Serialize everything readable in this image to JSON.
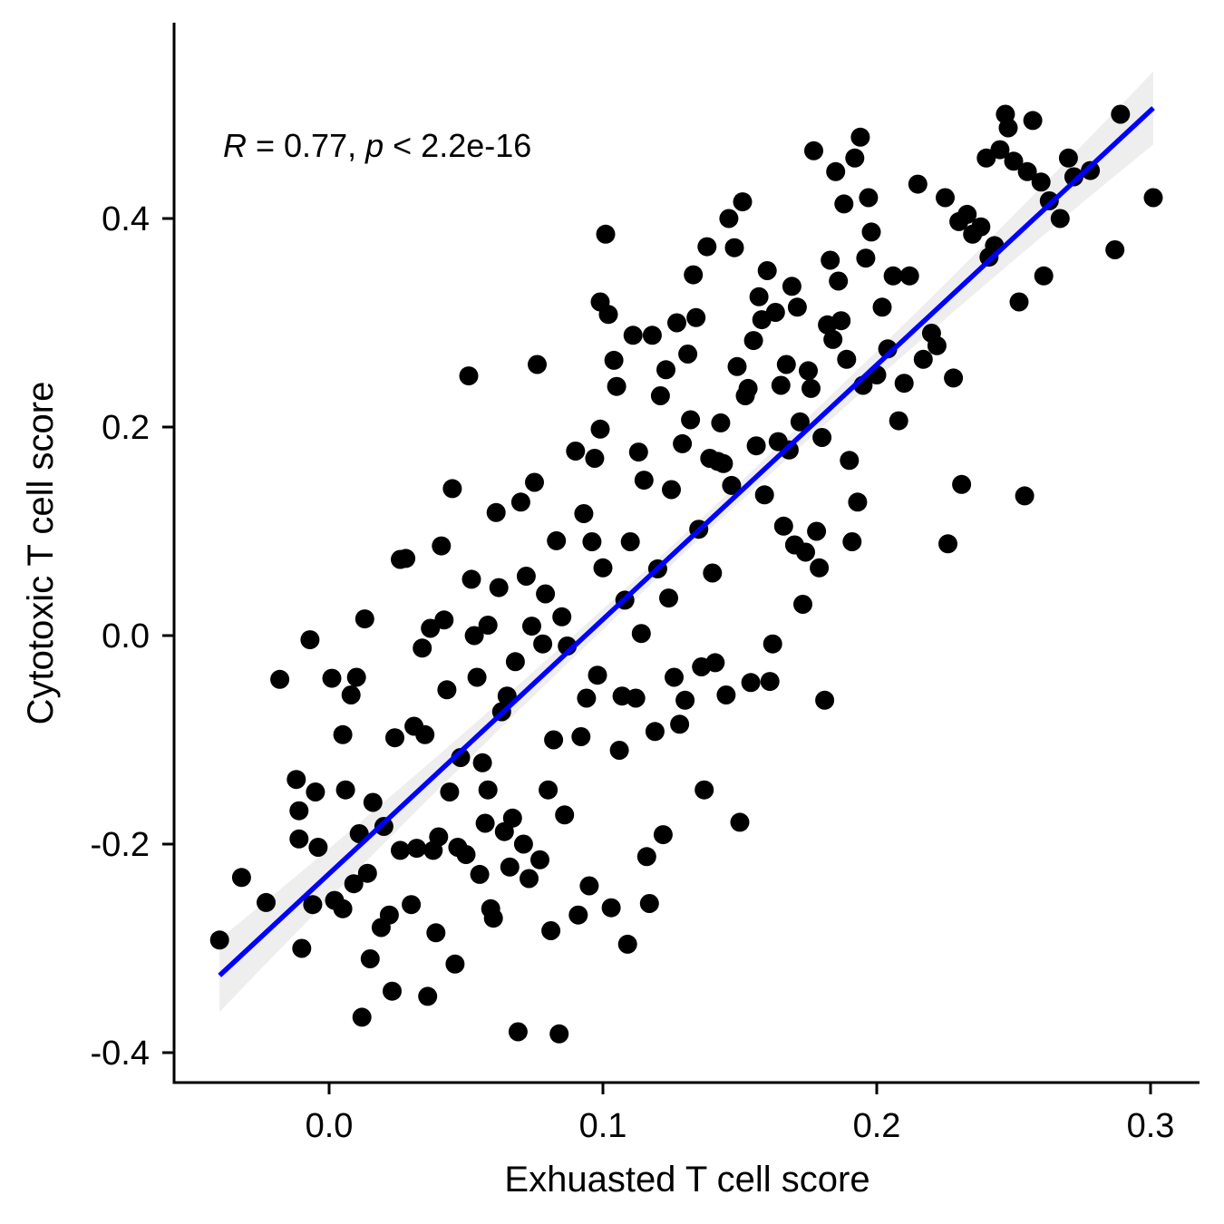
{
  "chart_data": {
    "type": "scatter",
    "title": "",
    "xlabel": "Exhuasted T cell score",
    "ylabel": "Cytotoxic T cell score",
    "xlim": [
      -0.056,
      0.318
    ],
    "ylim": [
      -0.427,
      0.574
    ],
    "x_ticks": [
      0.0,
      0.1,
      0.2,
      0.3
    ],
    "x_tick_labels": [
      "0.0",
      "0.1",
      "0.2",
      "0.3"
    ],
    "y_ticks": [
      -0.4,
      -0.2,
      0.0,
      0.2,
      0.4
    ],
    "y_tick_labels": [
      "-0.4",
      "-0.2",
      "0.0",
      "0.2",
      "0.4"
    ],
    "grid": false,
    "annotation": {
      "r_symbol": "R",
      "r_text": " = 0.77, ",
      "p_symbol": "p",
      "p_text": " < 2.2e-16"
    },
    "regression": {
      "x": [
        -0.04,
        0.301
      ],
      "y": [
        -0.326,
        0.506
      ],
      "color": "#0000ff",
      "ci_color": "#ebebeb",
      "ci_halfwidth_ends": 0.035,
      "ci_halfwidth_mid": 0.009
    },
    "point_color": "#000000",
    "points": [
      [
        -0.04,
        -0.292
      ],
      [
        -0.032,
        -0.232
      ],
      [
        -0.023,
        -0.256
      ],
      [
        -0.018,
        -0.042
      ],
      [
        -0.012,
        -0.138
      ],
      [
        -0.011,
        -0.168
      ],
      [
        -0.011,
        -0.195
      ],
      [
        -0.01,
        -0.3
      ],
      [
        -0.007,
        -0.004
      ],
      [
        -0.005,
        -0.15
      ],
      [
        -0.004,
        -0.203
      ],
      [
        -0.006,
        -0.258
      ],
      [
        0.001,
        -0.041
      ],
      [
        0.002,
        -0.254
      ],
      [
        0.005,
        -0.095
      ],
      [
        0.005,
        -0.262
      ],
      [
        0.006,
        -0.148
      ],
      [
        0.008,
        -0.057
      ],
      [
        0.009,
        -0.238
      ],
      [
        0.01,
        -0.04
      ],
      [
        0.011,
        -0.19
      ],
      [
        0.012,
        -0.366
      ],
      [
        0.013,
        0.016
      ],
      [
        0.014,
        -0.228
      ],
      [
        0.015,
        -0.31
      ],
      [
        0.016,
        -0.16
      ],
      [
        0.019,
        -0.28
      ],
      [
        0.02,
        -0.183
      ],
      [
        0.022,
        -0.268
      ],
      [
        0.023,
        -0.341
      ],
      [
        0.024,
        -0.098
      ],
      [
        0.026,
        -0.206
      ],
      [
        0.026,
        0.073
      ],
      [
        0.028,
        0.074
      ],
      [
        0.03,
        -0.258
      ],
      [
        0.031,
        -0.087
      ],
      [
        0.032,
        -0.204
      ],
      [
        0.034,
        -0.012
      ],
      [
        0.035,
        -0.095
      ],
      [
        0.036,
        -0.346
      ],
      [
        0.037,
        0.007
      ],
      [
        0.038,
        -0.206
      ],
      [
        0.039,
        -0.285
      ],
      [
        0.04,
        -0.193
      ],
      [
        0.041,
        0.086
      ],
      [
        0.042,
        0.015
      ],
      [
        0.043,
        -0.052
      ],
      [
        0.044,
        -0.15
      ],
      [
        0.045,
        0.141
      ],
      [
        0.046,
        -0.315
      ],
      [
        0.047,
        -0.203
      ],
      [
        0.048,
        -0.117
      ],
      [
        0.05,
        -0.21
      ],
      [
        0.051,
        0.249
      ],
      [
        0.052,
        0.054
      ],
      [
        0.053,
        0.0
      ],
      [
        0.054,
        -0.04
      ],
      [
        0.055,
        -0.229
      ],
      [
        0.056,
        -0.122
      ],
      [
        0.057,
        -0.18
      ],
      [
        0.058,
        0.01
      ],
      [
        0.058,
        -0.148
      ],
      [
        0.059,
        -0.262
      ],
      [
        0.06,
        -0.271
      ],
      [
        0.061,
        0.118
      ],
      [
        0.062,
        0.046
      ],
      [
        0.063,
        -0.073
      ],
      [
        0.064,
        -0.188
      ],
      [
        0.065,
        -0.058
      ],
      [
        0.066,
        -0.222
      ],
      [
        0.067,
        -0.175
      ],
      [
        0.068,
        -0.025
      ],
      [
        0.069,
        -0.38
      ],
      [
        0.07,
        0.128
      ],
      [
        0.071,
        -0.2
      ],
      [
        0.072,
        0.057
      ],
      [
        0.073,
        -0.233
      ],
      [
        0.074,
        0.009
      ],
      [
        0.075,
        0.147
      ],
      [
        0.076,
        0.26
      ],
      [
        0.077,
        -0.215
      ],
      [
        0.078,
        -0.008
      ],
      [
        0.079,
        0.04
      ],
      [
        0.08,
        -0.148
      ],
      [
        0.081,
        -0.283
      ],
      [
        0.082,
        -0.1
      ],
      [
        0.083,
        0.091
      ],
      [
        0.084,
        -0.382
      ],
      [
        0.085,
        0.018
      ],
      [
        0.086,
        -0.172
      ],
      [
        0.087,
        -0.01
      ],
      [
        0.09,
        0.177
      ],
      [
        0.091,
        -0.268
      ],
      [
        0.092,
        -0.097
      ],
      [
        0.093,
        0.117
      ],
      [
        0.094,
        -0.06
      ],
      [
        0.095,
        -0.24
      ],
      [
        0.096,
        0.09
      ],
      [
        0.097,
        0.17
      ],
      [
        0.098,
        -0.038
      ],
      [
        0.099,
        0.32
      ],
      [
        0.099,
        0.198
      ],
      [
        0.1,
        0.065
      ],
      [
        0.101,
        0.385
      ],
      [
        0.102,
        0.308
      ],
      [
        0.103,
        -0.261
      ],
      [
        0.104,
        0.264
      ],
      [
        0.105,
        0.239
      ],
      [
        0.106,
        -0.11
      ],
      [
        0.107,
        -0.058
      ],
      [
        0.108,
        0.034
      ],
      [
        0.109,
        -0.296
      ],
      [
        0.11,
        0.09
      ],
      [
        0.111,
        0.288
      ],
      [
        0.112,
        -0.06
      ],
      [
        0.113,
        0.176
      ],
      [
        0.114,
        0.002
      ],
      [
        0.115,
        0.149
      ],
      [
        0.116,
        -0.212
      ],
      [
        0.117,
        -0.257
      ],
      [
        0.118,
        0.288
      ],
      [
        0.119,
        -0.092
      ],
      [
        0.12,
        0.064
      ],
      [
        0.121,
        0.23
      ],
      [
        0.122,
        -0.191
      ],
      [
        0.123,
        0.255
      ],
      [
        0.124,
        0.036
      ],
      [
        0.125,
        0.14
      ],
      [
        0.126,
        -0.04
      ],
      [
        0.127,
        0.3
      ],
      [
        0.128,
        -0.085
      ],
      [
        0.129,
        0.184
      ],
      [
        0.13,
        -0.062
      ],
      [
        0.131,
        0.27
      ],
      [
        0.132,
        0.207
      ],
      [
        0.133,
        0.346
      ],
      [
        0.134,
        0.305
      ],
      [
        0.135,
        0.102
      ],
      [
        0.136,
        -0.03
      ],
      [
        0.137,
        -0.148
      ],
      [
        0.138,
        0.373
      ],
      [
        0.139,
        0.17
      ],
      [
        0.14,
        0.06
      ],
      [
        0.141,
        -0.026
      ],
      [
        0.142,
        0.167
      ],
      [
        0.143,
        0.204
      ],
      [
        0.144,
        0.165
      ],
      [
        0.145,
        -0.057
      ],
      [
        0.146,
        0.4
      ],
      [
        0.147,
        0.144
      ],
      [
        0.148,
        0.372
      ],
      [
        0.149,
        0.258
      ],
      [
        0.15,
        -0.179
      ],
      [
        0.151,
        0.416
      ],
      [
        0.152,
        0.23
      ],
      [
        0.153,
        0.237
      ],
      [
        0.154,
        -0.045
      ],
      [
        0.155,
        0.283
      ],
      [
        0.156,
        0.182
      ],
      [
        0.157,
        0.325
      ],
      [
        0.158,
        0.303
      ],
      [
        0.159,
        0.135
      ],
      [
        0.16,
        0.35
      ],
      [
        0.161,
        -0.044
      ],
      [
        0.162,
        -0.008
      ],
      [
        0.163,
        0.31
      ],
      [
        0.164,
        0.186
      ],
      [
        0.165,
        0.24
      ],
      [
        0.166,
        0.105
      ],
      [
        0.167,
        0.26
      ],
      [
        0.168,
        0.178
      ],
      [
        0.169,
        0.335
      ],
      [
        0.17,
        0.087
      ],
      [
        0.171,
        0.315
      ],
      [
        0.172,
        0.205
      ],
      [
        0.173,
        0.03
      ],
      [
        0.174,
        0.08
      ],
      [
        0.175,
        0.254
      ],
      [
        0.176,
        0.237
      ],
      [
        0.177,
        0.465
      ],
      [
        0.178,
        0.1
      ],
      [
        0.179,
        0.065
      ],
      [
        0.18,
        0.19
      ],
      [
        0.181,
        -0.062
      ],
      [
        0.182,
        0.298
      ],
      [
        0.183,
        0.36
      ],
      [
        0.184,
        0.284
      ],
      [
        0.185,
        0.445
      ],
      [
        0.186,
        0.34
      ],
      [
        0.187,
        0.302
      ],
      [
        0.188,
        0.414
      ],
      [
        0.189,
        0.265
      ],
      [
        0.19,
        0.168
      ],
      [
        0.191,
        0.09
      ],
      [
        0.192,
        0.458
      ],
      [
        0.193,
        0.128
      ],
      [
        0.194,
        0.478
      ],
      [
        0.195,
        0.24
      ],
      [
        0.196,
        0.362
      ],
      [
        0.197,
        0.42
      ],
      [
        0.198,
        0.387
      ],
      [
        0.2,
        0.25
      ],
      [
        0.202,
        0.315
      ],
      [
        0.204,
        0.275
      ],
      [
        0.206,
        0.345
      ],
      [
        0.208,
        0.206
      ],
      [
        0.21,
        0.242
      ],
      [
        0.212,
        0.345
      ],
      [
        0.215,
        0.433
      ],
      [
        0.217,
        0.265
      ],
      [
        0.22,
        0.29
      ],
      [
        0.222,
        0.278
      ],
      [
        0.225,
        0.42
      ],
      [
        0.226,
        0.088
      ],
      [
        0.228,
        0.247
      ],
      [
        0.23,
        0.397
      ],
      [
        0.231,
        0.145
      ],
      [
        0.233,
        0.404
      ],
      [
        0.235,
        0.385
      ],
      [
        0.238,
        0.392
      ],
      [
        0.24,
        0.458
      ],
      [
        0.241,
        0.363
      ],
      [
        0.243,
        0.374
      ],
      [
        0.245,
        0.466
      ],
      [
        0.247,
        0.5
      ],
      [
        0.248,
        0.487
      ],
      [
        0.25,
        0.455
      ],
      [
        0.252,
        0.32
      ],
      [
        0.254,
        0.134
      ],
      [
        0.255,
        0.445
      ],
      [
        0.257,
        0.494
      ],
      [
        0.26,
        0.435
      ],
      [
        0.261,
        0.345
      ],
      [
        0.263,
        0.417
      ],
      [
        0.267,
        0.4
      ],
      [
        0.27,
        0.458
      ],
      [
        0.272,
        0.44
      ],
      [
        0.278,
        0.446
      ],
      [
        0.287,
        0.37
      ],
      [
        0.289,
        0.5
      ],
      [
        0.301,
        0.42
      ]
    ]
  }
}
